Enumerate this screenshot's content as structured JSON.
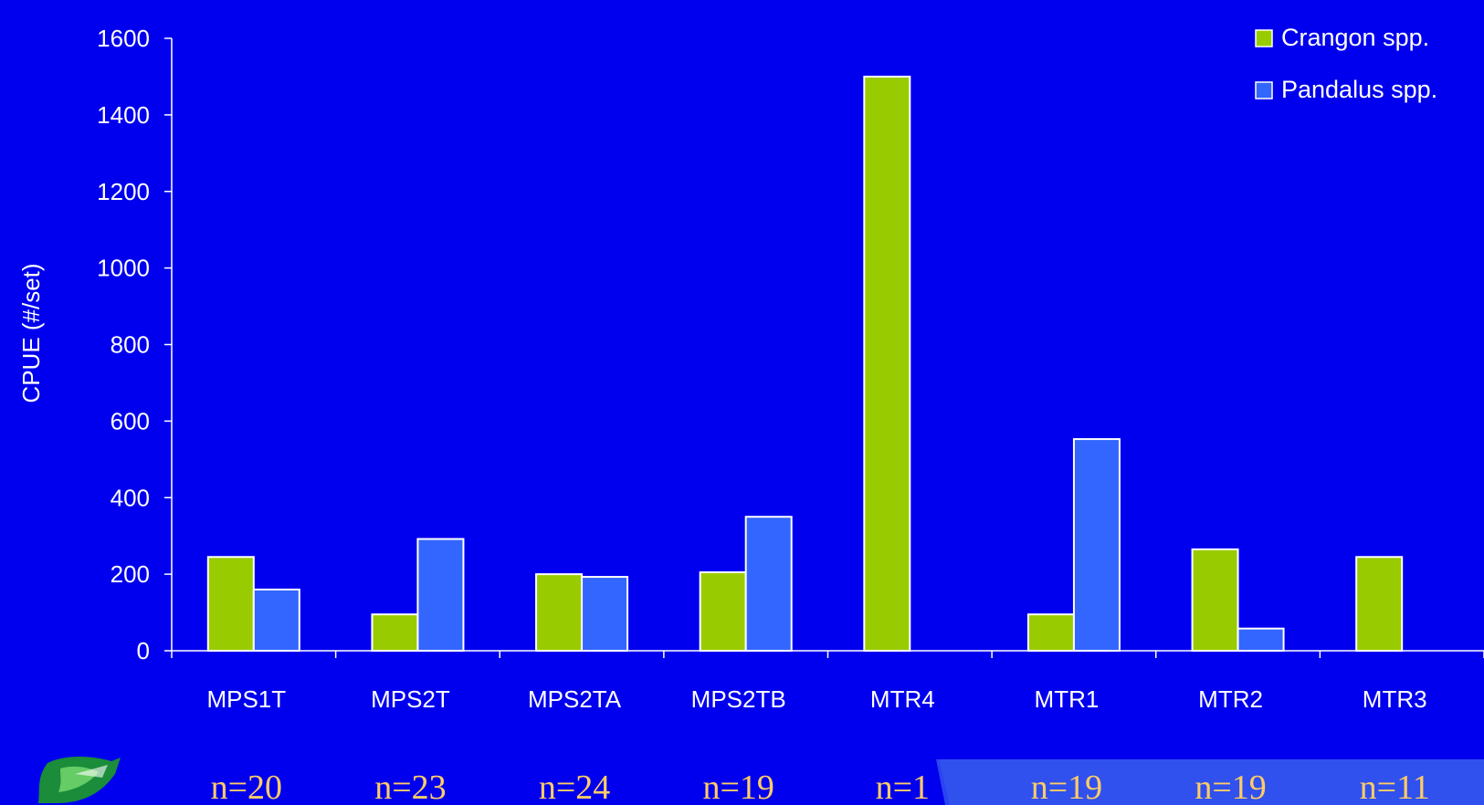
{
  "colors": {
    "background": "#0000ee",
    "crangon": "#99cc00",
    "pandalus": "#3366ff",
    "bar_stroke": "#ffffff",
    "axis": "#ffffff",
    "n_label": "#ffcc66",
    "bottom_band_light": "#3355ee"
  },
  "chart_data": {
    "type": "bar",
    "title": "",
    "xlabel": "",
    "ylabel": "CPUE (#/set)",
    "ylim": [
      0,
      1600
    ],
    "yticks": [
      0,
      200,
      400,
      600,
      800,
      1000,
      1200,
      1400,
      1600
    ],
    "grid": false,
    "legend_position": "top-right",
    "categories": [
      "MPS1T",
      "MPS2T",
      "MPS2TA",
      "MPS2TB",
      "MTR4",
      "MTR1",
      "MTR2",
      "MTR3"
    ],
    "series": [
      {
        "name": "Crangon spp.",
        "values": [
          245,
          95,
          200,
          205,
          1500,
          95,
          265,
          245
        ]
      },
      {
        "name": "Pandalus spp.",
        "values": [
          160,
          292,
          193,
          350,
          0,
          553,
          58,
          0
        ]
      }
    ],
    "sample_sizes": [
      "n=20",
      "n=23",
      "n=24",
      "n=19",
      "n=1",
      "n=19",
      "n=19",
      "n=11"
    ]
  },
  "logo": {
    "icon": "fish-logo-icon"
  }
}
